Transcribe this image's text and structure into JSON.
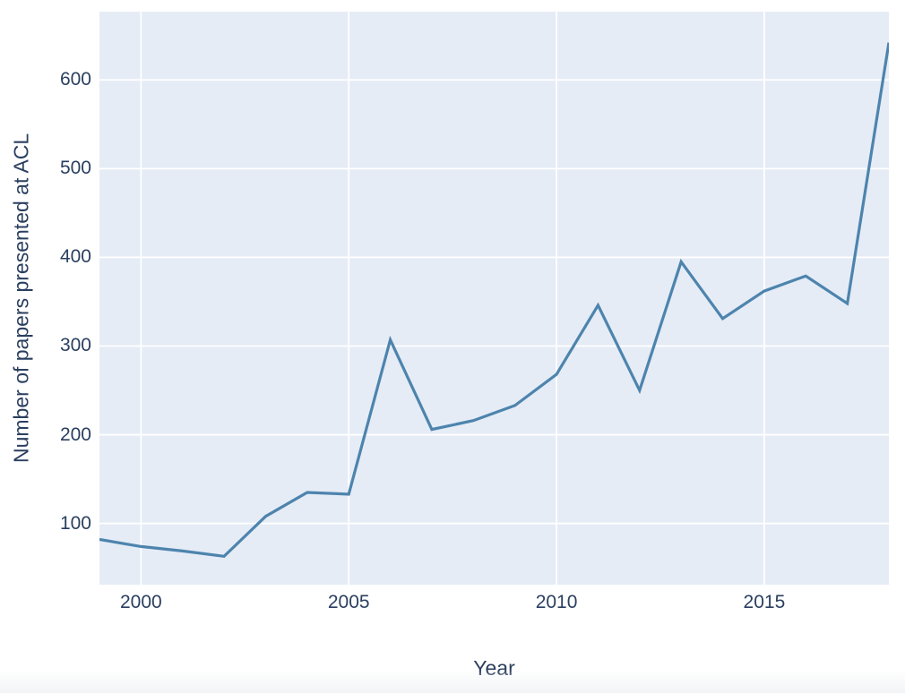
{
  "figure": {
    "title": ""
  },
  "chart_data": {
    "type": "line",
    "title": "",
    "xlabel": "Year",
    "ylabel": "Number of papers presented at ACL",
    "x": [
      1999,
      2000,
      2001,
      2002,
      2003,
      2004,
      2005,
      2006,
      2007,
      2008,
      2009,
      2010,
      2011,
      2012,
      2013,
      2014,
      2015,
      2016,
      2017,
      2018
    ],
    "series": [
      {
        "name": "Number of papers presented at ACL",
        "values": [
          82,
          74,
          69,
          63,
          108,
          135,
          133,
          307,
          206,
          216,
          233,
          268,
          346,
          250,
          395,
          331,
          362,
          379,
          348,
          642
        ]
      }
    ],
    "xticks": [
      2000,
      2005,
      2010,
      2015
    ],
    "yticks": [
      100,
      200,
      300,
      400,
      500,
      600
    ],
    "xlim": [
      1999,
      2018
    ],
    "ylim": [
      31,
      677
    ],
    "grid": true,
    "legend": false,
    "legend_position": "none",
    "colors": {
      "line": "#4d84ad",
      "plot_background": "#e5ecf6",
      "grid": "#ffffff",
      "text": "#2a3f5f",
      "paper_background": "#ffffff"
    }
  }
}
